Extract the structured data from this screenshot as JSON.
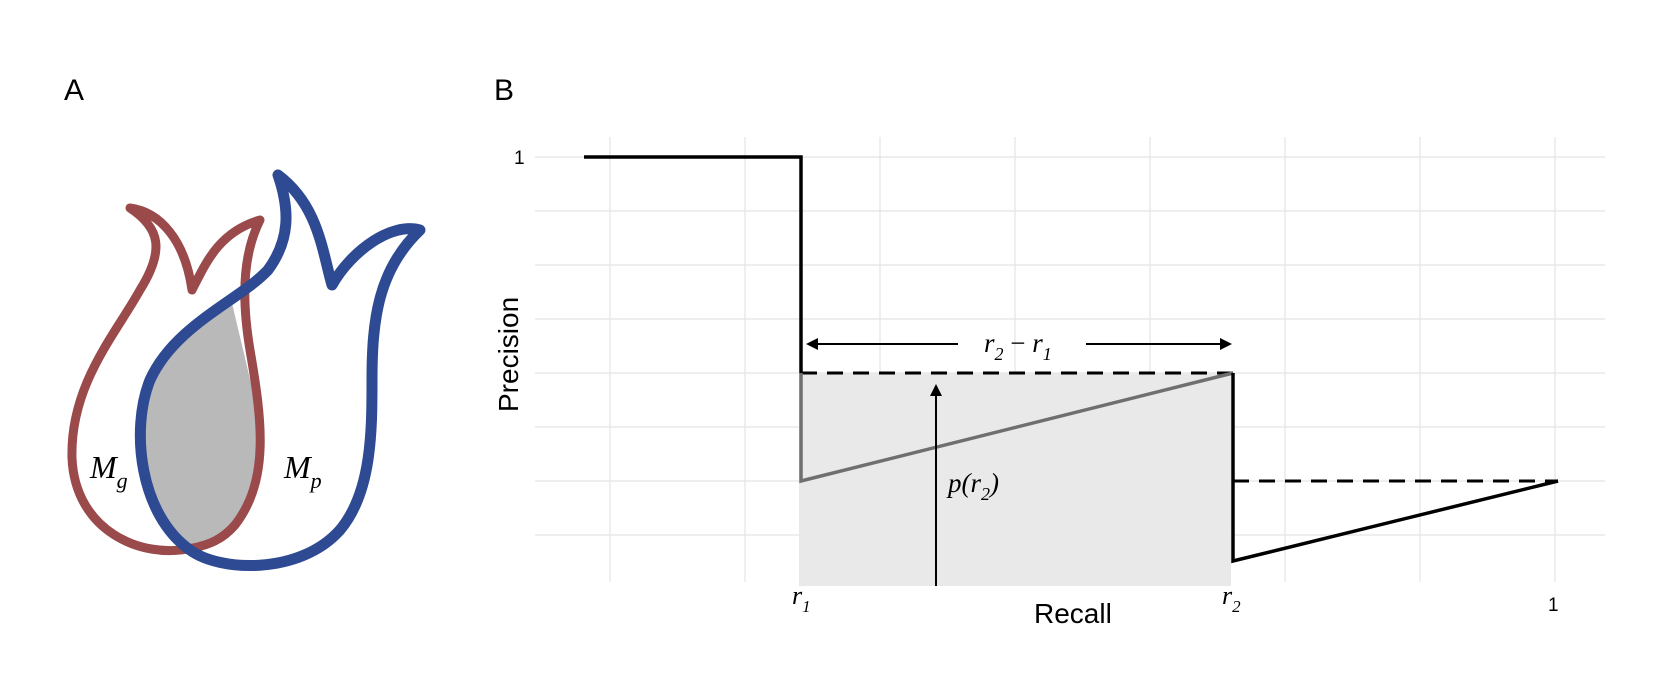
{
  "panel_a": {
    "letter": "A",
    "label_g": "M",
    "label_g_sub": "g",
    "label_p": "M",
    "label_p_sub": "p",
    "colors": {
      "mg": "#9a4a4a",
      "mp": "#2d4a92",
      "overlap": "#b9b9b9"
    }
  },
  "panel_b": {
    "letter": "B",
    "ylabel": "Precision",
    "xlabel": "Recall",
    "y_tick_top": "1",
    "x_tick_r1": "r",
    "x_tick_r1_sub": "1",
    "x_tick_r2": "r",
    "x_tick_r2_sub": "2",
    "x_tick_end": "1",
    "width_label": {
      "a": "r",
      "a_sub": "2",
      "minus": " − ",
      "b": "r",
      "b_sub": "1"
    },
    "height_label": {
      "p": "p(",
      "r": "r",
      "r_sub": "2",
      "close": ")"
    },
    "colors": {
      "shade": "#e9e9e9",
      "grid": "#e4e4e4",
      "gray_line": "#6f6f6f"
    }
  }
}
